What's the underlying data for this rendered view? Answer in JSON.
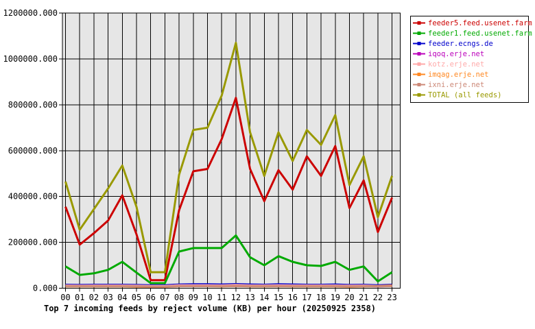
{
  "page": {
    "background": "#ffffff"
  },
  "chart_data": {
    "type": "line",
    "title": "Top 7 incoming feeds by reject volume (KB) per hour (20250925 2358)",
    "xlabel": "",
    "ylabel": "",
    "x": [
      "00",
      "01",
      "02",
      "03",
      "04",
      "05",
      "06",
      "07",
      "08",
      "09",
      "10",
      "11",
      "12",
      "13",
      "14",
      "15",
      "16",
      "17",
      "18",
      "19",
      "20",
      "21",
      "22",
      "23"
    ],
    "ylim": [
      0,
      1200000
    ],
    "ytick_step": 200000,
    "ytick_labels": [
      "0.000",
      "200000.000",
      "400000.000",
      "600000.000",
      "800000.000",
      "1000000.000",
      "1200000.000"
    ],
    "grid": true,
    "plot_background": "#e6e6e6",
    "grid_color": "#000000",
    "axis_color": "#000000",
    "legend_position": "outside-top-right",
    "series": [
      {
        "name": "feeder5.feed.usenet.farm",
        "color": "#cc0000",
        "values": [
          355000,
          190000,
          240000,
          295000,
          405000,
          235000,
          35000,
          35000,
          340000,
          510000,
          520000,
          650000,
          830000,
          520000,
          380000,
          515000,
          430000,
          575000,
          490000,
          620000,
          350000,
          470000,
          245000,
          395000
        ]
      },
      {
        "name": "feeder1.feed.usenet.farm",
        "color": "#00aa00",
        "values": [
          95000,
          58000,
          65000,
          80000,
          115000,
          68000,
          22000,
          22000,
          160000,
          175000,
          175000,
          175000,
          230000,
          135000,
          100000,
          140000,
          115000,
          100000,
          97000,
          115000,
          80000,
          95000,
          30000,
          70000
        ]
      },
      {
        "name": "feeder.ecngs.de",
        "color": "#0000cc",
        "values": [
          15000,
          14000,
          15000,
          15000,
          15000,
          14000,
          13000,
          13000,
          16000,
          17000,
          17000,
          16000,
          18000,
          16000,
          15000,
          17000,
          16000,
          15000,
          15000,
          16000,
          14000,
          15000,
          13000,
          15000
        ]
      },
      {
        "name": "iqoq.erje.net",
        "color": "#bb00bb",
        "values": [
          10000,
          10000,
          10000,
          10000,
          10000,
          9000,
          8000,
          8000,
          11000,
          11000,
          11000,
          10000,
          12000,
          10000,
          10000,
          11000,
          10000,
          10000,
          10000,
          10000,
          9000,
          10000,
          8000,
          10000
        ]
      },
      {
        "name": "kotz.erje.net",
        "color": "#ffaaaa",
        "values": [
          12000,
          11000,
          12000,
          12000,
          12000,
          11000,
          10000,
          10000,
          13000,
          13000,
          13000,
          12000,
          14000,
          12000,
          12000,
          13000,
          12000,
          12000,
          12000,
          12000,
          11000,
          12000,
          10000,
          12000
        ]
      },
      {
        "name": "imqag.erje.net",
        "color": "#ff8822",
        "values": [
          8000,
          8000,
          8000,
          8000,
          8000,
          7000,
          6000,
          6000,
          9000,
          9000,
          9000,
          8000,
          10000,
          8000,
          8000,
          9000,
          8000,
          8000,
          8000,
          8000,
          7000,
          8000,
          9000,
          11000
        ]
      },
      {
        "name": "ixni.erje.net",
        "color": "#cc8877",
        "values": [
          9000,
          9000,
          9000,
          9000,
          9000,
          8000,
          7000,
          7000,
          9000,
          9000,
          9000,
          9000,
          10000,
          9000,
          9000,
          9000,
          9000,
          9000,
          9000,
          9000,
          8000,
          9000,
          8000,
          9000
        ]
      },
      {
        "name": "TOTAL (all feeds)",
        "color": "#999900",
        "values": [
          465000,
          255000,
          345000,
          435000,
          535000,
          355000,
          70000,
          70000,
          495000,
          690000,
          700000,
          840000,
          1070000,
          680000,
          490000,
          680000,
          555000,
          690000,
          625000,
          755000,
          450000,
          575000,
          310000,
          490000
        ]
      }
    ]
  }
}
